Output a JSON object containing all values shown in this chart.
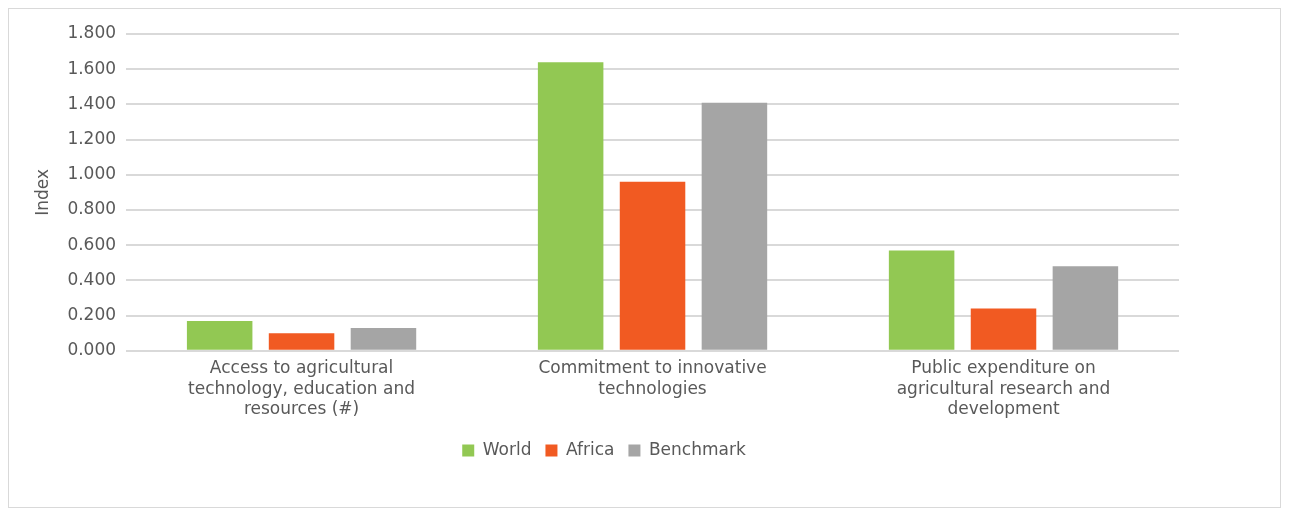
{
  "chart_data": {
    "type": "bar",
    "ylabel": "Index",
    "categories": [
      "Access to agricultural technology, education and resources (#)",
      "Commitment to innovative technologies",
      "Public expenditure on agricultural research and development"
    ],
    "series": [
      {
        "name": "World",
        "color": "#92c853",
        "values": [
          0.17,
          1.64,
          0.57
        ]
      },
      {
        "name": "Africa",
        "color": "#f15a22",
        "values": [
          0.1,
          0.96,
          0.24
        ]
      },
      {
        "name": "Benchmark",
        "color": "#a5a5a5",
        "values": [
          0.13,
          1.41,
          0.48
        ]
      }
    ],
    "ylim": [
      0,
      1.8
    ],
    "yticks": [
      {
        "value": 0,
        "label": "0.000"
      },
      {
        "value": 0.2,
        "label": "0.200"
      },
      {
        "value": 0.4,
        "label": "0.400"
      },
      {
        "value": 0.6,
        "label": "0.600"
      },
      {
        "value": 0.8,
        "label": "0.800"
      },
      {
        "value": 1,
        "label": "1.000"
      },
      {
        "value": 1.2,
        "label": "1.200"
      },
      {
        "value": 1.4,
        "label": "1.400"
      },
      {
        "value": 1.6,
        "label": "1.600"
      },
      {
        "value": 1.8,
        "label": "1.800"
      }
    ],
    "grid": "y",
    "legend": "bottom"
  }
}
